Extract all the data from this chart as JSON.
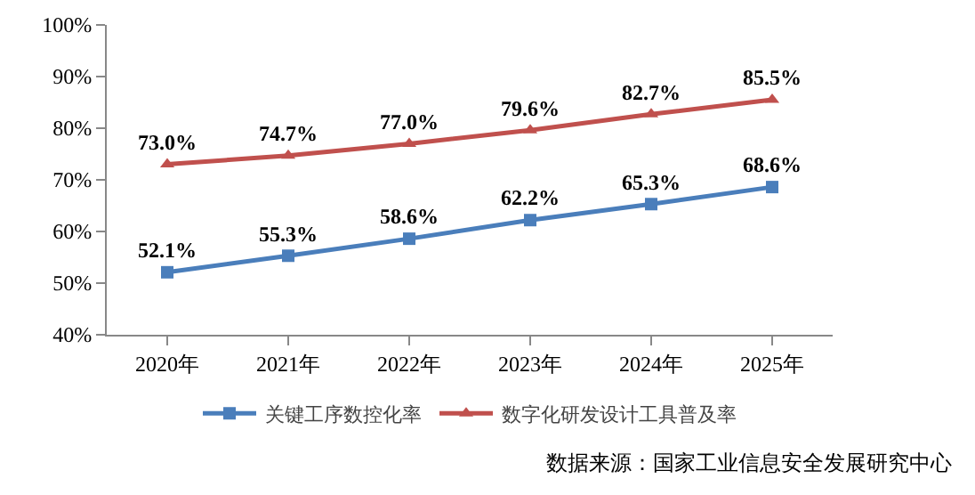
{
  "chart_data": {
    "type": "line",
    "categories": [
      "2020年",
      "2021年",
      "2022年",
      "2023年",
      "2024年",
      "2025年"
    ],
    "series": [
      {
        "name": "关键工序数控化率",
        "color": "#4a7ebb",
        "marker": "square",
        "values": [
          52.1,
          55.3,
          58.6,
          62.2,
          65.3,
          68.6
        ],
        "value_labels": [
          "52.1%",
          "55.3%",
          "58.6%",
          "62.2%",
          "65.3%",
          "68.6%"
        ]
      },
      {
        "name": "数字化研发设计工具普及率",
        "color": "#c0504d",
        "marker": "triangle",
        "values": [
          73.0,
          74.7,
          77.0,
          79.6,
          82.7,
          85.5
        ],
        "value_labels": [
          "73.0%",
          "74.7%",
          "77.0%",
          "79.6%",
          "82.7%",
          "85.5%"
        ]
      }
    ],
    "ylim": [
      40,
      100
    ],
    "yticks": [
      {
        "value": 40,
        "label": "40%"
      },
      {
        "value": 50,
        "label": "50%"
      },
      {
        "value": 60,
        "label": "60%"
      },
      {
        "value": 70,
        "label": "70%"
      },
      {
        "value": 80,
        "label": "80%"
      },
      {
        "value": 90,
        "label": "90%"
      },
      {
        "value": 100,
        "label": "100%"
      }
    ],
    "grid": false,
    "legend": "bottom",
    "annotations": [
      "数据来源：国家工业信息安全发展研究中心"
    ]
  }
}
